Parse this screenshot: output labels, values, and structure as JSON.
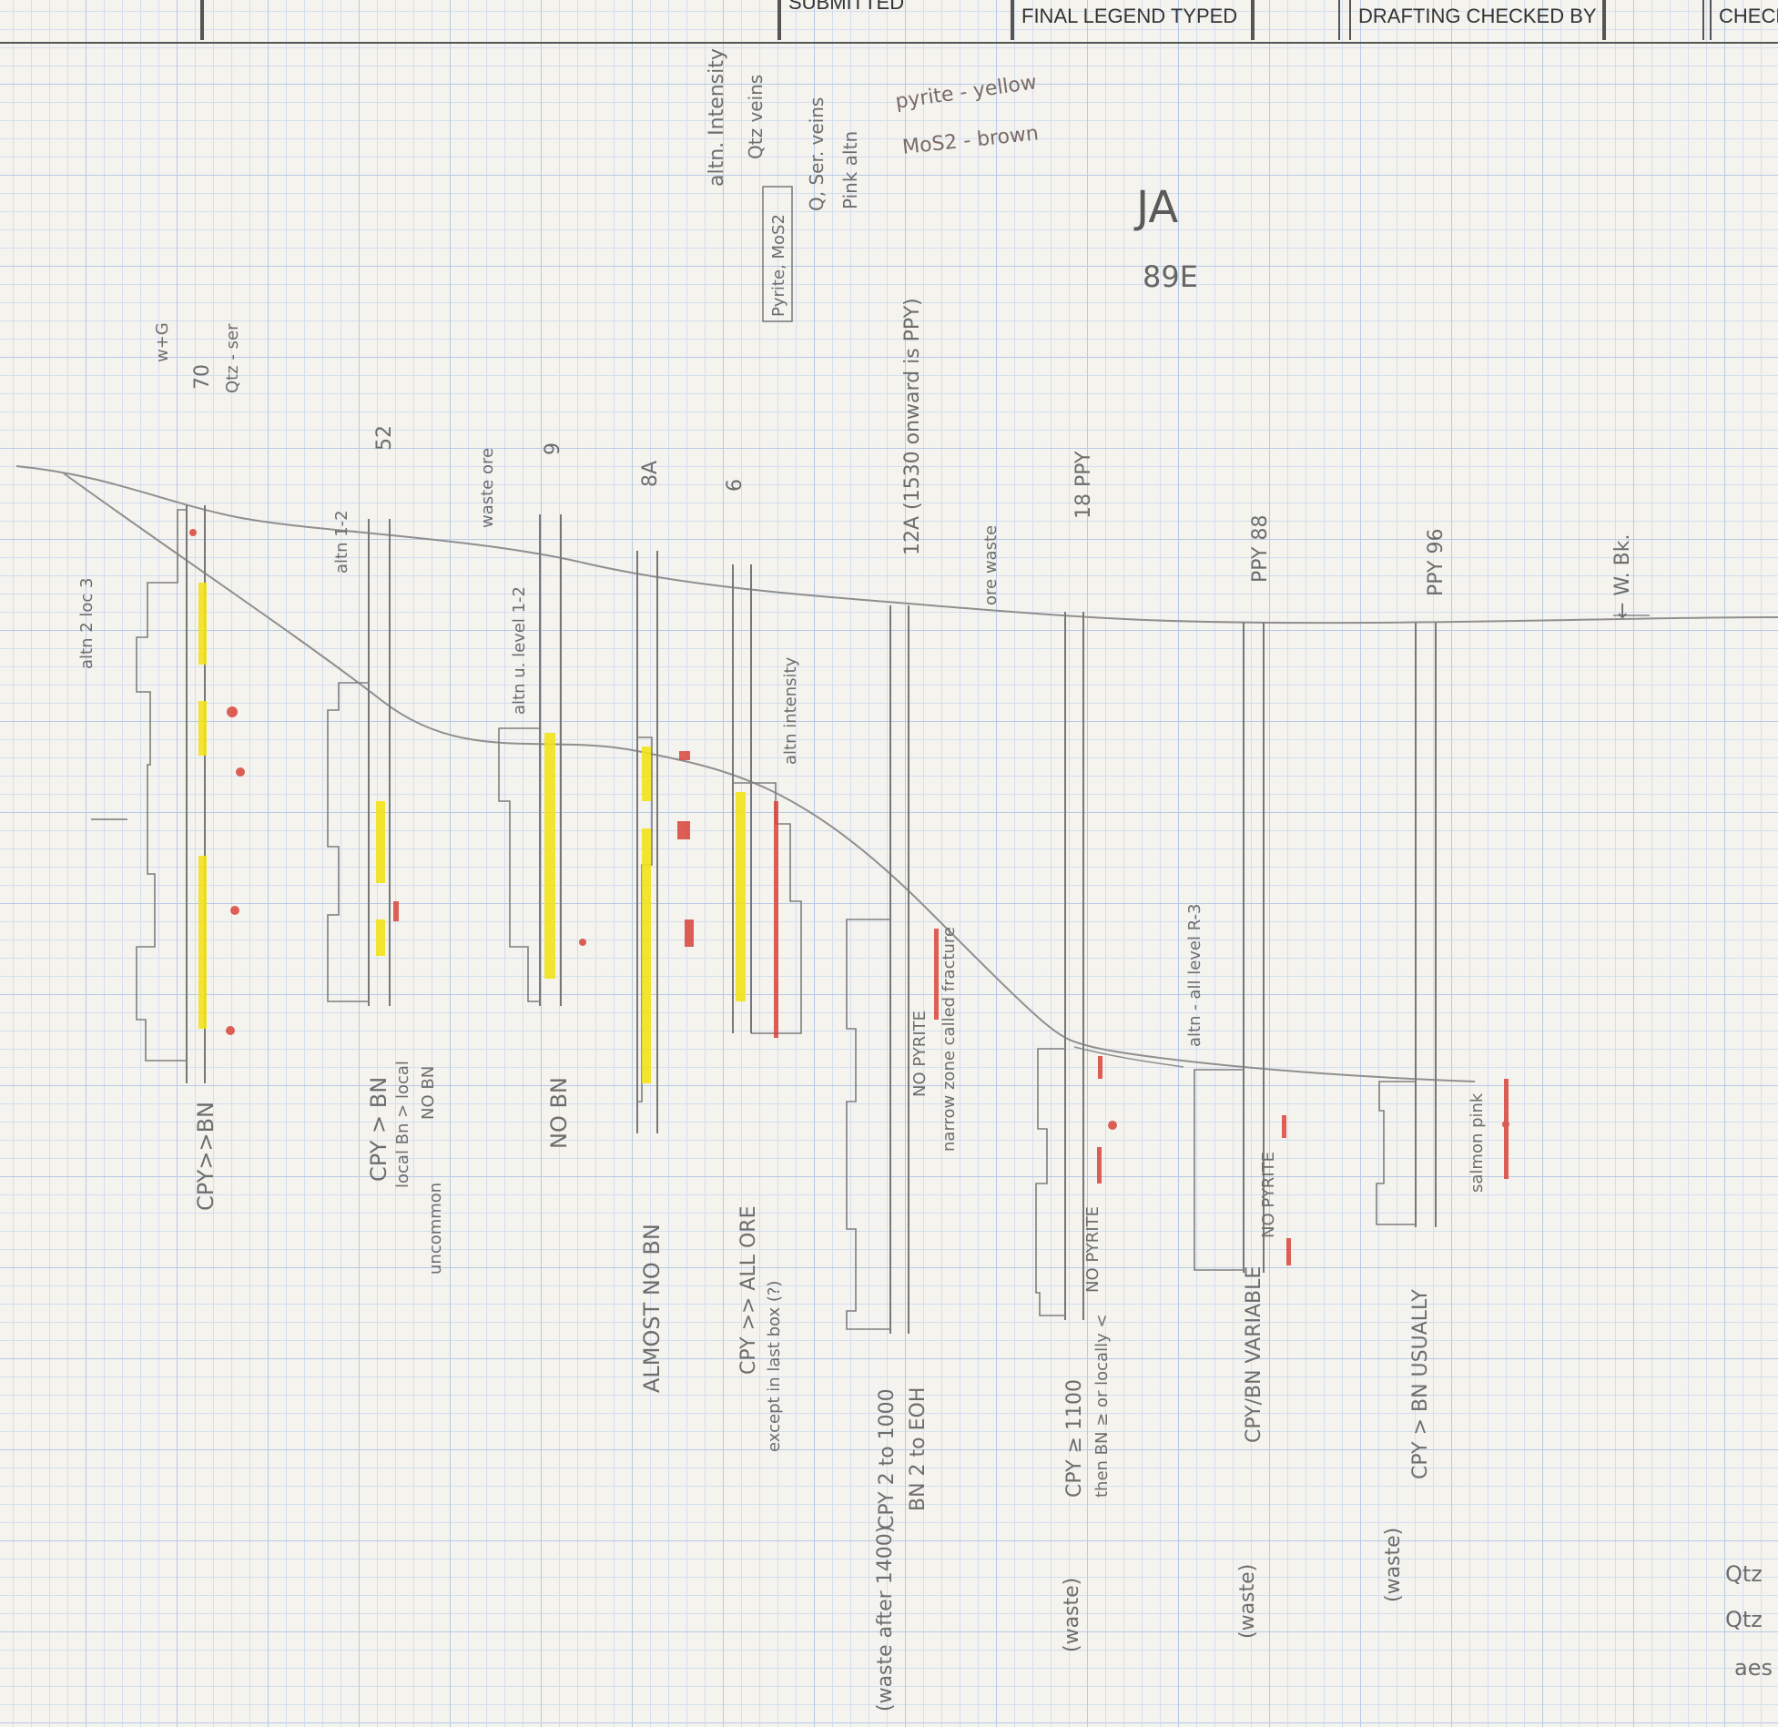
{
  "title_block": {
    "submitted": "SUBMITTED",
    "final_legend_typed": "FINAL LEGEND TYPED",
    "drafting_checked_by": "DRAFTING CHECKED BY",
    "checked": "CHECK"
  },
  "corner": {
    "mark": "JA",
    "number": "89E"
  },
  "legend": {
    "pyrite": "pyrite - yellow",
    "mos2": "MoS2 - brown"
  },
  "top_notes": {
    "altn_intensity": "altn. Intensity",
    "qtz_veins": "Qtz veins",
    "q_ser_veins": "Q, Ser. veins",
    "pink_altn": "Pink altn",
    "pyrite_mos2": "Pyrite, MoS2"
  },
  "holes": [
    {
      "id": "70",
      "top_label": "70",
      "extra": "Qtz - ser",
      "extra2": "w+G",
      "note": "CPY>>BN",
      "alt_note": "altn 2 loc 3"
    },
    {
      "id": "52",
      "top_label": "52",
      "extra": "altn 1-2",
      "note": "CPY > BN",
      "note2": "local Bn > local",
      "note3": "NO BN",
      "note4": "uncommon"
    },
    {
      "id": "9",
      "top_label": "9",
      "extra": "waste ore",
      "extra2": "altn u. level 1-2",
      "note": "NO BN"
    },
    {
      "id": "8A",
      "top_label": "8A",
      "note": "ALMOST NO BN"
    },
    {
      "id": "6",
      "top_label": "6",
      "extra": "altn intensity",
      "note": "CPY >> ALL ORE",
      "note2": "except in last box (?)"
    },
    {
      "id": "12A",
      "top_label": "12A (1530 onward is PPY)",
      "note": "CPY 2 to 1000",
      "note2": "BN 2 to EOH",
      "note3": "(waste after 1400)",
      "note4": "NO PYRITE",
      "note5": "narrow zone called fracture"
    },
    {
      "id": "18",
      "top_label": "18 PPY",
      "extra": "ore waste",
      "note": "CPY ≥ 1100",
      "note2": "then BN ≥ or locally <",
      "note3": "(waste)",
      "note4": "NO PYRITE",
      "note5": "altn - all level R-3"
    },
    {
      "id": "88",
      "top_label": "PPY 88",
      "note": "CPY/BN VARIABLE",
      "note2": "(waste)",
      "note3": "NO PYRITE"
    },
    {
      "id": "96",
      "top_label": "PPY 96",
      "note": "CPY > BN USUALLY",
      "note2": "(waste)",
      "note3": "salmon pink"
    }
  ],
  "margin_notes": {
    "wbk": "← W. Bk.",
    "qtz1": "Qtz",
    "qtz2": "Qtz",
    "aes": "aes"
  },
  "colors": {
    "pencil": "#8a8a8a",
    "pyrite_yellow": "#f2e21a",
    "mos2_red": "#d8443a",
    "grid": "#b8c9e6"
  }
}
